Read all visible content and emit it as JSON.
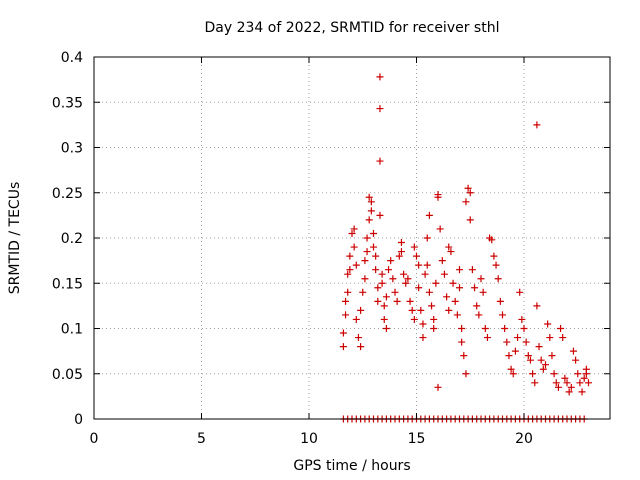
{
  "chart_data": {
    "type": "scatter",
    "title": "Day 234 of 2022, SRMTID for receiver sthl",
    "xlabel": "GPS time / hours",
    "ylabel": "SRMTID / TECUs",
    "xlim": [
      0,
      24
    ],
    "ylim": [
      0,
      0.4
    ],
    "xticks": [
      "0",
      "5",
      "10",
      "15",
      "20"
    ],
    "yticks": [
      "0",
      "0.05",
      "0.1",
      "0.15",
      "0.2",
      "0.25",
      "0.3",
      "0.35",
      "0.4"
    ],
    "grid": true,
    "marker": "+",
    "series": [
      {
        "color": "#cc0000",
        "points": [
          [
            11.6,
            0.0
          ],
          [
            11.8,
            0.0
          ],
          [
            12.0,
            0.0
          ],
          [
            12.2,
            0.0
          ],
          [
            12.4,
            0.0
          ],
          [
            12.6,
            0.0
          ],
          [
            12.8,
            0.0
          ],
          [
            13.0,
            0.0
          ],
          [
            13.2,
            0.0
          ],
          [
            13.4,
            0.0
          ],
          [
            13.6,
            0.0
          ],
          [
            13.8,
            0.0
          ],
          [
            14.0,
            0.0
          ],
          [
            14.2,
            0.0
          ],
          [
            14.4,
            0.0
          ],
          [
            14.6,
            0.0
          ],
          [
            14.8,
            0.0
          ],
          [
            15.0,
            0.0
          ],
          [
            15.2,
            0.0
          ],
          [
            15.4,
            0.0
          ],
          [
            15.6,
            0.0
          ],
          [
            15.8,
            0.0
          ],
          [
            16.0,
            0.0
          ],
          [
            16.2,
            0.0
          ],
          [
            16.4,
            0.0
          ],
          [
            16.6,
            0.0
          ],
          [
            16.8,
            0.0
          ],
          [
            17.0,
            0.0
          ],
          [
            17.2,
            0.0
          ],
          [
            17.4,
            0.0
          ],
          [
            17.6,
            0.0
          ],
          [
            17.8,
            0.0
          ],
          [
            18.0,
            0.0
          ],
          [
            18.2,
            0.0
          ],
          [
            18.4,
            0.0
          ],
          [
            18.6,
            0.0
          ],
          [
            18.8,
            0.0
          ],
          [
            19.0,
            0.0
          ],
          [
            19.2,
            0.0
          ],
          [
            19.4,
            0.0
          ],
          [
            19.6,
            0.0
          ],
          [
            19.8,
            0.0
          ],
          [
            20.0,
            0.0
          ],
          [
            20.2,
            0.0
          ],
          [
            20.4,
            0.0
          ],
          [
            20.6,
            0.0
          ],
          [
            20.8,
            0.0
          ],
          [
            21.0,
            0.0
          ],
          [
            21.2,
            0.0
          ],
          [
            21.4,
            0.0
          ],
          [
            21.6,
            0.0
          ],
          [
            21.8,
            0.0
          ],
          [
            22.0,
            0.0
          ],
          [
            22.2,
            0.0
          ],
          [
            22.4,
            0.0
          ],
          [
            22.6,
            0.0
          ],
          [
            22.8,
            0.0
          ],
          [
            11.6,
            0.08
          ],
          [
            11.6,
            0.095
          ],
          [
            11.7,
            0.115
          ],
          [
            11.7,
            0.13
          ],
          [
            11.8,
            0.14
          ],
          [
            11.8,
            0.16
          ],
          [
            11.9,
            0.165
          ],
          [
            11.9,
            0.18
          ],
          [
            12.0,
            0.205
          ],
          [
            12.1,
            0.21
          ],
          [
            12.1,
            0.19
          ],
          [
            12.2,
            0.17
          ],
          [
            12.2,
            0.11
          ],
          [
            12.3,
            0.09
          ],
          [
            12.4,
            0.08
          ],
          [
            12.4,
            0.12
          ],
          [
            12.5,
            0.14
          ],
          [
            12.6,
            0.155
          ],
          [
            12.6,
            0.175
          ],
          [
            12.7,
            0.185
          ],
          [
            12.7,
            0.2
          ],
          [
            12.8,
            0.22
          ],
          [
            12.8,
            0.245
          ],
          [
            12.9,
            0.24
          ],
          [
            12.9,
            0.23
          ],
          [
            13.0,
            0.205
          ],
          [
            13.0,
            0.19
          ],
          [
            13.1,
            0.18
          ],
          [
            13.1,
            0.165
          ],
          [
            13.2,
            0.145
          ],
          [
            13.2,
            0.13
          ],
          [
            13.3,
            0.225
          ],
          [
            13.3,
            0.285
          ],
          [
            13.3,
            0.343
          ],
          [
            13.3,
            0.378
          ],
          [
            13.4,
            0.16
          ],
          [
            13.4,
            0.15
          ],
          [
            13.5,
            0.125
          ],
          [
            13.5,
            0.11
          ],
          [
            13.6,
            0.1
          ],
          [
            13.6,
            0.135
          ],
          [
            13.7,
            0.165
          ],
          [
            13.8,
            0.175
          ],
          [
            13.9,
            0.155
          ],
          [
            14.0,
            0.14
          ],
          [
            14.1,
            0.13
          ],
          [
            14.2,
            0.18
          ],
          [
            14.3,
            0.195
          ],
          [
            14.3,
            0.185
          ],
          [
            14.4,
            0.16
          ],
          [
            14.5,
            0.15
          ],
          [
            14.6,
            0.155
          ],
          [
            14.7,
            0.13
          ],
          [
            14.8,
            0.12
          ],
          [
            14.9,
            0.11
          ],
          [
            14.9,
            0.19
          ],
          [
            15.0,
            0.18
          ],
          [
            15.1,
            0.17
          ],
          [
            15.1,
            0.145
          ],
          [
            15.2,
            0.12
          ],
          [
            15.3,
            0.105
          ],
          [
            15.3,
            0.09
          ],
          [
            15.4,
            0.16
          ],
          [
            15.5,
            0.17
          ],
          [
            15.5,
            0.2
          ],
          [
            15.6,
            0.225
          ],
          [
            15.6,
            0.14
          ],
          [
            15.7,
            0.125
          ],
          [
            15.8,
            0.11
          ],
          [
            15.8,
            0.1
          ],
          [
            15.9,
            0.15
          ],
          [
            16.0,
            0.248
          ],
          [
            16.0,
            0.245
          ],
          [
            16.0,
            0.035
          ],
          [
            16.1,
            0.21
          ],
          [
            16.2,
            0.175
          ],
          [
            16.3,
            0.16
          ],
          [
            16.4,
            0.135
          ],
          [
            16.5,
            0.12
          ],
          [
            16.5,
            0.19
          ],
          [
            16.6,
            0.185
          ],
          [
            16.7,
            0.15
          ],
          [
            16.8,
            0.13
          ],
          [
            16.9,
            0.115
          ],
          [
            17.0,
            0.165
          ],
          [
            17.0,
            0.145
          ],
          [
            17.1,
            0.1
          ],
          [
            17.1,
            0.085
          ],
          [
            17.2,
            0.07
          ],
          [
            17.3,
            0.05
          ],
          [
            17.3,
            0.24
          ],
          [
            17.4,
            0.255
          ],
          [
            17.5,
            0.25
          ],
          [
            17.5,
            0.22
          ],
          [
            17.6,
            0.165
          ],
          [
            17.7,
            0.145
          ],
          [
            17.8,
            0.125
          ],
          [
            17.9,
            0.115
          ],
          [
            18.0,
            0.155
          ],
          [
            18.1,
            0.14
          ],
          [
            18.2,
            0.1
          ],
          [
            18.3,
            0.09
          ],
          [
            18.4,
            0.2
          ],
          [
            18.5,
            0.198
          ],
          [
            18.6,
            0.18
          ],
          [
            18.7,
            0.17
          ],
          [
            18.8,
            0.155
          ],
          [
            18.9,
            0.13
          ],
          [
            19.0,
            0.115
          ],
          [
            19.1,
            0.1
          ],
          [
            19.2,
            0.085
          ],
          [
            19.3,
            0.07
          ],
          [
            19.4,
            0.055
          ],
          [
            19.5,
            0.05
          ],
          [
            19.6,
            0.075
          ],
          [
            19.7,
            0.09
          ],
          [
            19.8,
            0.14
          ],
          [
            19.9,
            0.11
          ],
          [
            20.0,
            0.1
          ],
          [
            20.1,
            0.085
          ],
          [
            20.2,
            0.07
          ],
          [
            20.3,
            0.065
          ],
          [
            20.4,
            0.05
          ],
          [
            20.5,
            0.04
          ],
          [
            20.6,
            0.325
          ],
          [
            20.6,
            0.125
          ],
          [
            20.7,
            0.08
          ],
          [
            20.8,
            0.065
          ],
          [
            20.9,
            0.055
          ],
          [
            21.0,
            0.06
          ],
          [
            21.1,
            0.105
          ],
          [
            21.2,
            0.09
          ],
          [
            21.3,
            0.07
          ],
          [
            21.4,
            0.05
          ],
          [
            21.5,
            0.04
          ],
          [
            21.6,
            0.035
          ],
          [
            21.7,
            0.1
          ],
          [
            21.8,
            0.09
          ],
          [
            21.9,
            0.045
          ],
          [
            22.0,
            0.04
          ],
          [
            22.1,
            0.03
          ],
          [
            22.2,
            0.035
          ],
          [
            22.3,
            0.075
          ],
          [
            22.4,
            0.065
          ],
          [
            22.5,
            0.05
          ],
          [
            22.6,
            0.04
          ],
          [
            22.7,
            0.03
          ],
          [
            22.8,
            0.045
          ],
          [
            22.9,
            0.055
          ],
          [
            22.9,
            0.05
          ],
          [
            23.0,
            0.04
          ]
        ]
      }
    ]
  }
}
